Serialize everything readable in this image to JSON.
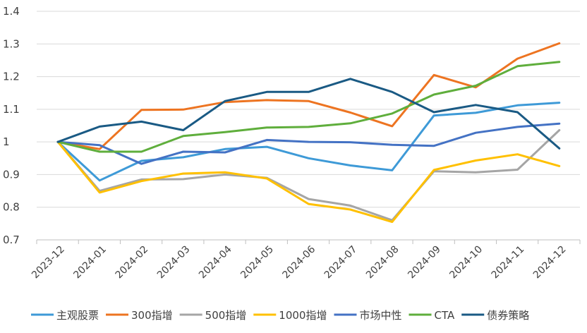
{
  "chart_data": {
    "type": "line",
    "title": "",
    "xlabel": "",
    "ylabel": "",
    "ylim": [
      0.7,
      1.4
    ],
    "yticks": [
      "0.7",
      "0.8",
      "0.9",
      "1",
      "1.1",
      "1.2",
      "1.3",
      "1.4"
    ],
    "ytick_values": [
      0.7,
      0.8,
      0.9,
      1.0,
      1.1,
      1.2,
      1.3,
      1.4
    ],
    "grid": true,
    "legend_position": "bottom",
    "categories": [
      "2023-12",
      "2024-01",
      "2024-02",
      "2024-03",
      "2024-04",
      "2024-05",
      "2024-06",
      "2024-07",
      "2024-08",
      "2024-09",
      "2024-10",
      "2024-11",
      "2024-12"
    ],
    "series": [
      {
        "name": "主观股票",
        "color": "#3e9ad7",
        "values": [
          1.0,
          0.882,
          0.942,
          0.953,
          0.978,
          0.985,
          0.95,
          0.928,
          0.913,
          1.081,
          1.089,
          1.112,
          1.12
        ]
      },
      {
        "name": "300指增",
        "color": "#ed7421",
        "values": [
          1.0,
          0.978,
          1.098,
          1.099,
          1.122,
          1.128,
          1.125,
          1.09,
          1.048,
          1.205,
          1.167,
          1.255,
          1.302
        ]
      },
      {
        "name": "500指增",
        "color": "#a5a5a5",
        "values": [
          1.0,
          0.85,
          0.885,
          0.886,
          0.9,
          0.89,
          0.825,
          0.805,
          0.76,
          0.91,
          0.907,
          0.915,
          1.036
        ]
      },
      {
        "name": "1000指增",
        "color": "#ffc000",
        "values": [
          1.0,
          0.845,
          0.88,
          0.903,
          0.907,
          0.888,
          0.81,
          0.793,
          0.755,
          0.914,
          0.943,
          0.962,
          0.926
        ]
      },
      {
        "name": "市场中性",
        "color": "#4472c4",
        "values": [
          1.0,
          0.99,
          0.933,
          0.97,
          0.968,
          1.006,
          1.0,
          0.999,
          0.991,
          0.988,
          1.028,
          1.046,
          1.056
        ]
      },
      {
        "name": "CTA",
        "color": "#5fae3c",
        "values": [
          1.0,
          0.97,
          0.97,
          1.018,
          1.03,
          1.044,
          1.046,
          1.057,
          1.087,
          1.145,
          1.172,
          1.232,
          1.245
        ]
      },
      {
        "name": "债券策略",
        "color": "#1a5a84",
        "values": [
          1.0,
          1.047,
          1.062,
          1.036,
          1.125,
          1.153,
          1.153,
          1.193,
          1.153,
          1.091,
          1.113,
          1.091,
          0.98
        ]
      }
    ]
  }
}
